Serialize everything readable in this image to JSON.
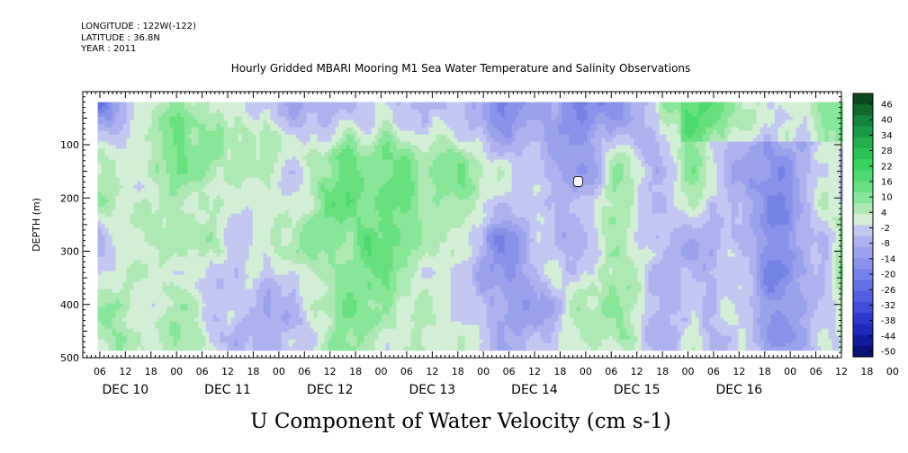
{
  "header": {
    "longitude": "LONGITUDE : 122W(-122)",
    "latitude": "LATITUDE : 36.8N",
    "year": "YEAR : 2011"
  },
  "chart_data": {
    "type": "heatmap",
    "title": "Hourly Gridded MBARI Mooring M1 Sea Water Temperature and Salinity Observations",
    "xlabel": "U Component of Water Velocity (cm s-1)",
    "ylabel": "DEPTH (m)",
    "y_axis": {
      "range": [
        0,
        500
      ],
      "inverted": true,
      "ticks": [
        100,
        200,
        300,
        400,
        500
      ]
    },
    "x_axis": {
      "hour_ticks": [
        "06",
        "12",
        "18",
        "00",
        "06",
        "12",
        "18",
        "00",
        "06",
        "12",
        "18",
        "00",
        "06",
        "12",
        "18",
        "00",
        "06",
        "12",
        "18",
        "00",
        "06",
        "12",
        "18",
        "00",
        "06",
        "12",
        "18",
        "00",
        "06",
        "12",
        "18",
        "00"
      ],
      "day_labels": [
        "DEC 10",
        "DEC 11",
        "DEC 12",
        "DEC 13",
        "DEC 14",
        "DEC 15",
        "DEC 16"
      ]
    },
    "data_extent": {
      "depth_range_m": [
        20,
        485
      ],
      "hours_from_dec10_00_to_dec17_00": [
        0,
        168
      ]
    },
    "colorbar": {
      "labels": [
        "46",
        "40",
        "34",
        "28",
        "22",
        "16",
        "10",
        "4",
        "-2",
        "-8",
        "-14",
        "-20",
        "-26",
        "-32",
        "-38",
        "-44",
        "-50"
      ],
      "colors": [
        "#0a4a1e",
        "#0f6a2a",
        "#14853a",
        "#1a9a44",
        "#22b04c",
        "#2bc454",
        "#36d25e",
        "#4cda70",
        "#66e07f",
        "#88e699",
        "#aee9b4",
        "#d2efd6",
        "#c3c8f2",
        "#adb2ef",
        "#9aa2ec",
        "#8892ea",
        "#7482e6",
        "#6272e2",
        "#5060de",
        "#3e4ed8",
        "#2c3acc",
        "#1c2ab8",
        "#101c9a",
        "#0a1278"
      ]
    },
    "grid": false
  }
}
